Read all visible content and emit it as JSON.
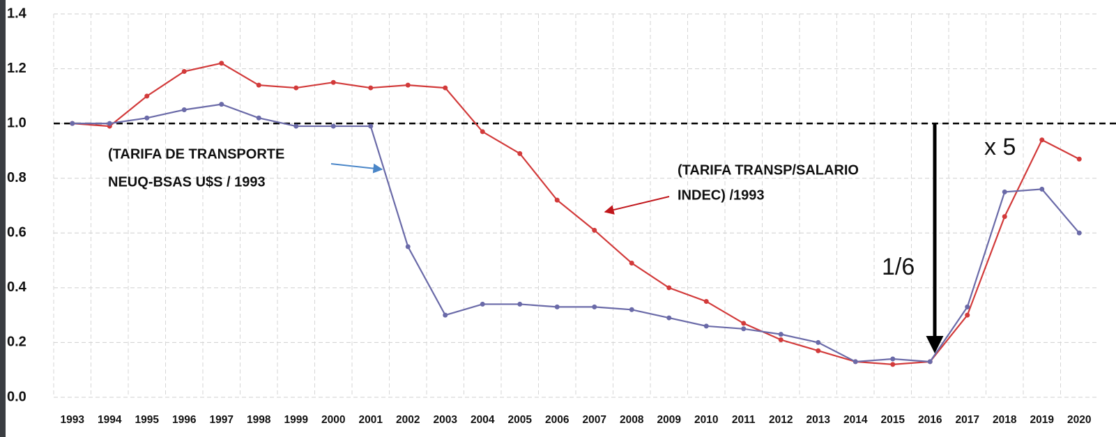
{
  "chart_data": {
    "type": "line",
    "categories": [
      "1993",
      "1994",
      "1995",
      "1996",
      "1997",
      "1998",
      "1999",
      "2000",
      "2001",
      "2002",
      "2003",
      "2004",
      "2005",
      "2006",
      "2007",
      "2008",
      "2009",
      "2010",
      "2011",
      "2012",
      "2013",
      "2014",
      "2015",
      "2016",
      "2017",
      "2018",
      "2019",
      "2020"
    ],
    "series": [
      {
        "color": "#d23a3a",
        "values": [
          1.0,
          0.99,
          1.1,
          1.19,
          1.22,
          1.14,
          1.13,
          1.15,
          1.13,
          1.14,
          1.13,
          0.97,
          0.89,
          0.72,
          0.61,
          0.49,
          0.4,
          0.35,
          0.27,
          0.21,
          0.17,
          0.13,
          0.12,
          0.13,
          0.3,
          0.66,
          0.94,
          0.87
        ]
      },
      {
        "color": "#6a6aa8",
        "values": [
          1.0,
          1.0,
          1.02,
          1.05,
          1.07,
          1.02,
          0.99,
          0.99,
          0.99,
          0.55,
          0.3,
          0.34,
          0.34,
          0.33,
          0.33,
          0.32,
          0.29,
          0.26,
          0.25,
          0.23,
          0.2,
          0.13,
          0.14,
          0.13,
          0.33,
          0.75,
          0.76,
          0.6
        ]
      }
    ],
    "ylim": [
      0,
      1.4
    ],
    "yticks": [
      {
        "value": 0,
        "label": "0.0"
      },
      0.2,
      0.4,
      0.6,
      0.8,
      {
        "value": 1,
        "label": "1.0"
      },
      1.2,
      1.4
    ],
    "grid": true,
    "reference_line": 1,
    "annotations": [
      {
        "lines": [
          "(TARIFA DE TRANSPORTE",
          "NEUQ-BSAS  U$S / 1993"
        ]
      },
      {
        "lines": [
          "(TARIFA TRANSP/SALARIO",
          "INDEC) /1993"
        ]
      },
      {
        "text": "x 5"
      },
      {
        "text": "1/6"
      }
    ]
  }
}
